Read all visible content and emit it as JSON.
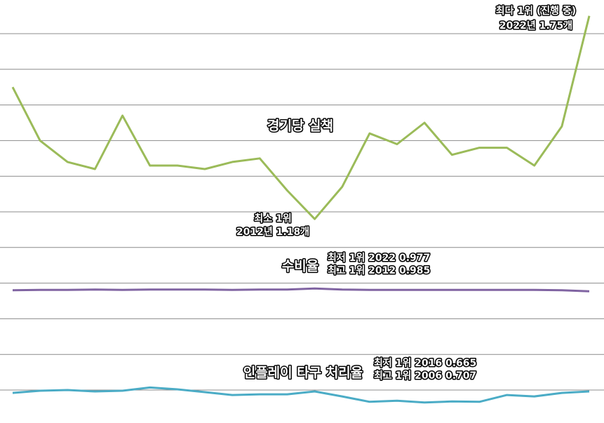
{
  "chart_data": {
    "type": "line",
    "categories": [
      null,
      null,
      null,
      null,
      null,
      null,
      null,
      null,
      null,
      null,
      null,
      null,
      null,
      null,
      null,
      null,
      null,
      null,
      null,
      null,
      null,
      null
    ],
    "series": [
      {
        "name": "경기당 실책",
        "color": "#9bbb59",
        "values": [
          1.55,
          1.4,
          1.34,
          1.32,
          1.47,
          1.33,
          1.33,
          1.32,
          1.34,
          1.35,
          1.26,
          1.18,
          1.27,
          1.42,
          1.39,
          1.45,
          1.36,
          1.38,
          1.38,
          1.33,
          1.44,
          1.75
        ]
      },
      {
        "name": "수비율",
        "color": "#8064a2",
        "values": [
          0.98,
          0.981,
          0.981,
          0.982,
          0.981,
          0.982,
          0.982,
          0.982,
          0.981,
          0.982,
          0.982,
          0.985,
          0.982,
          0.981,
          0.981,
          0.981,
          0.981,
          0.981,
          0.981,
          0.981,
          0.98,
          0.977
        ]
      },
      {
        "name": "인플레이 타구 처리율",
        "color": "#4bacc6",
        "values": [
          0.692,
          0.698,
          0.7,
          0.696,
          0.698,
          0.707,
          0.702,
          0.694,
          0.686,
          0.688,
          0.688,
          0.696,
          0.682,
          0.667,
          0.67,
          0.665,
          0.668,
          0.667,
          0.686,
          0.682,
          0.692,
          0.696
        ]
      }
    ],
    "annotations": [
      "최다 1위 (진행 중)",
      "2022년 1.75개",
      "최소 1위",
      "2012년 1.18개",
      "최저 1위 2022 0.977",
      "최고 1위 2012 0.985",
      "최저 1위 2016 0.665",
      "최고 1위 2006 0.707"
    ],
    "ylim": [
      0.6,
      1.8
    ],
    "yticks": [
      0.7,
      0.8,
      0.9,
      1,
      1.1,
      1.2,
      1.3,
      1.4,
      1.5,
      1.6,
      1.7
    ],
    "grid": true
  }
}
